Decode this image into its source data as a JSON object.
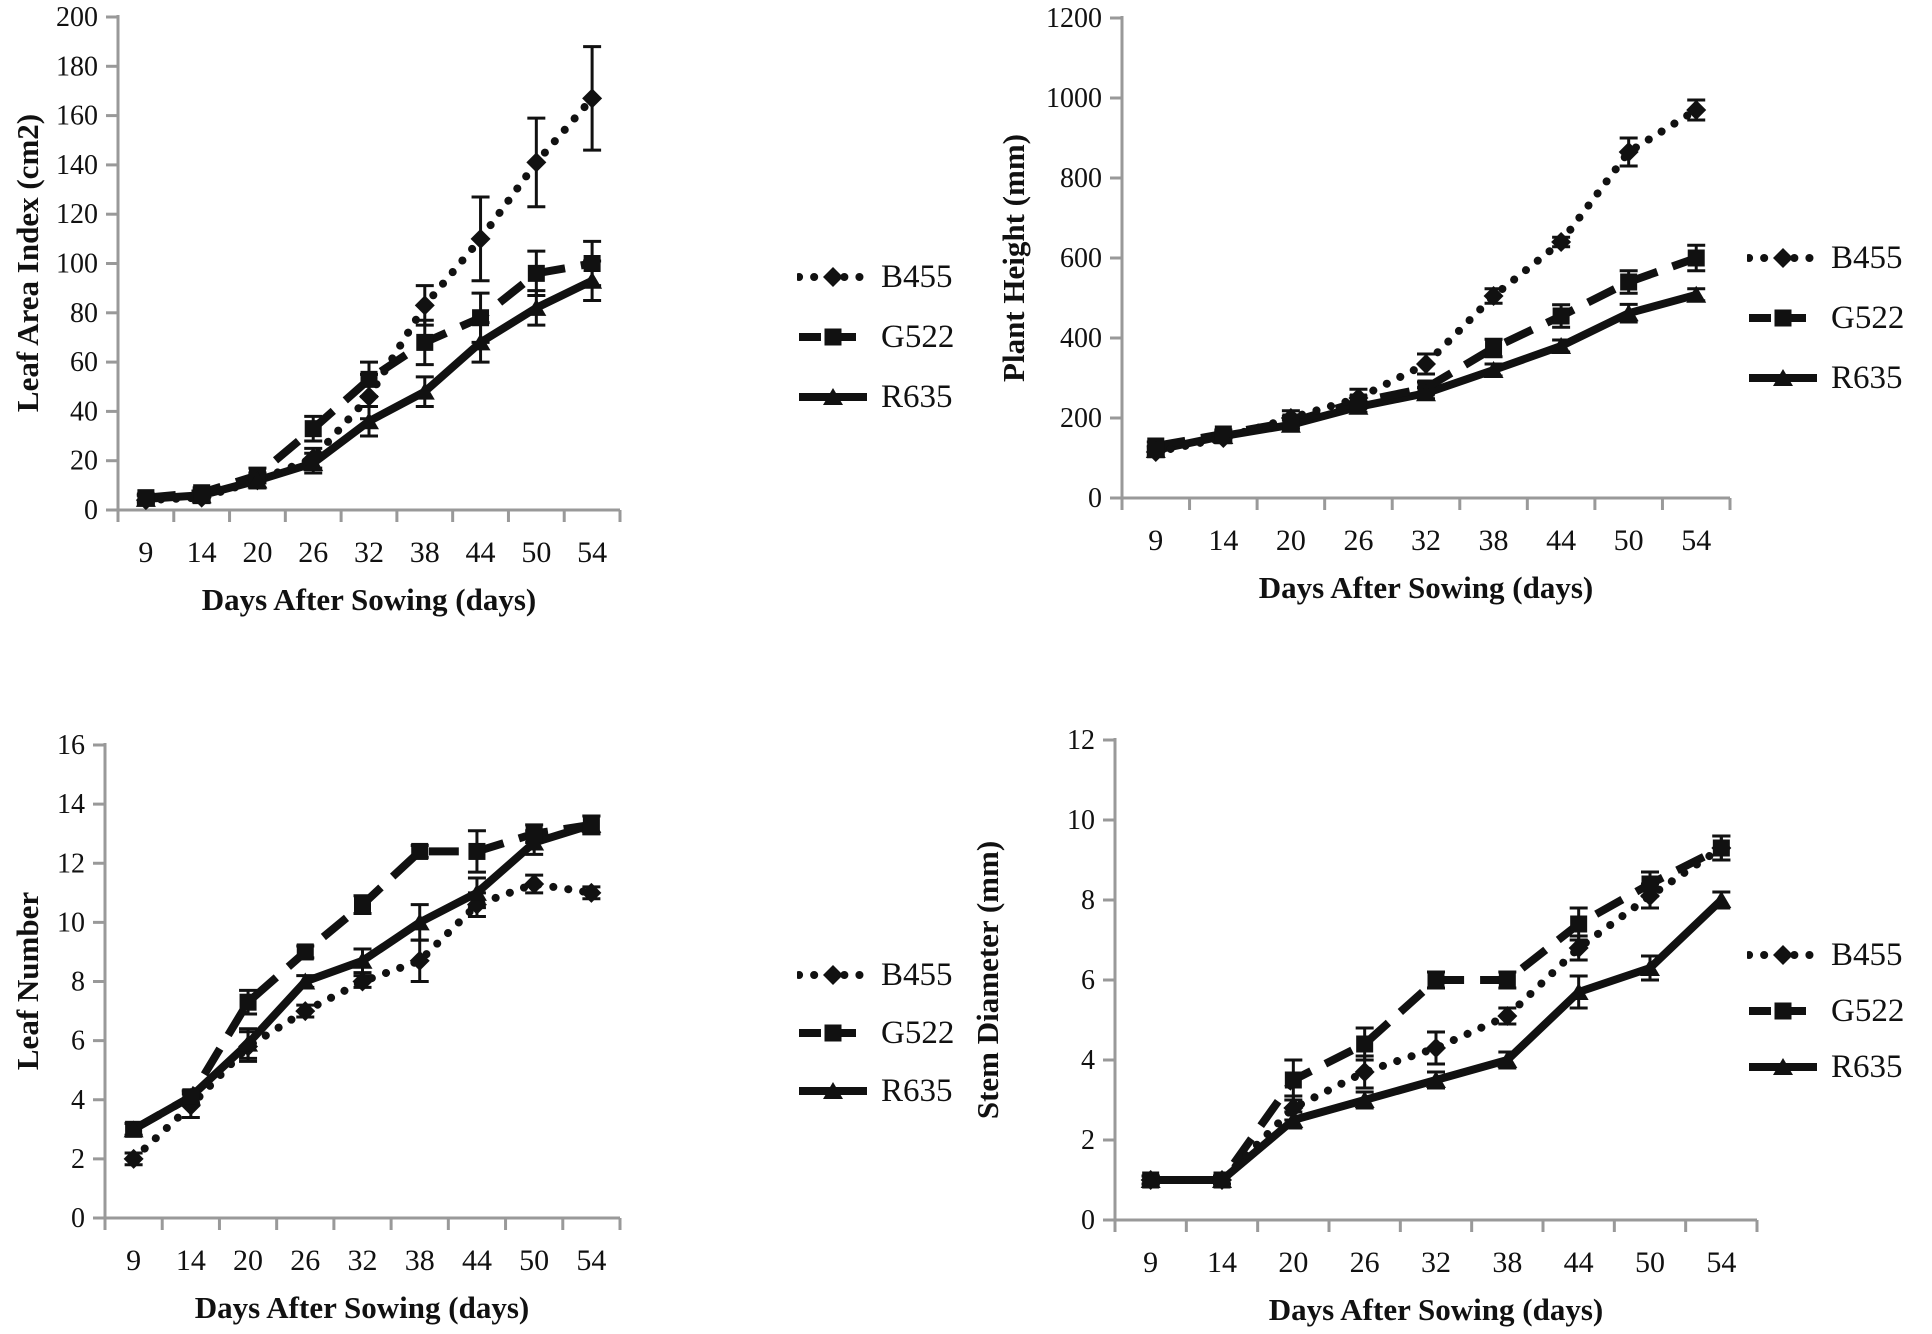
{
  "figure": {
    "background": "#ffffff",
    "ink_color": "#111111",
    "axis_color": "#999999",
    "x_axis_title": "Days After Sowing (days)"
  },
  "legend": {
    "position": "right",
    "items": [
      {
        "label": "B455",
        "style": "dotted",
        "marker": "diamond"
      },
      {
        "label": "G522",
        "style": "dashed",
        "marker": "square"
      },
      {
        "label": "R635",
        "style": "solid",
        "marker": "triangle"
      }
    ]
  },
  "chart_data": [
    {
      "type": "line",
      "id": "leaf-area-index",
      "ylabel": "Leaf Area Index (cm2)",
      "xlabel": "Days After Sowing (days)",
      "ylim": [
        0,
        200
      ],
      "ystep": 20,
      "grid": false,
      "categories": [
        "9",
        "14",
        "20",
        "26",
        "32",
        "38",
        "44",
        "50",
        "54"
      ],
      "series": [
        {
          "name": "B455",
          "style": "dotted",
          "marker": "diamond",
          "values": [
            4,
            5,
            12,
            21,
            46,
            83,
            110,
            141,
            167
          ],
          "errors": [
            2,
            2,
            3,
            4,
            9,
            8,
            17,
            18,
            21
          ]
        },
        {
          "name": "G522",
          "style": "dashed",
          "marker": "square",
          "values": [
            5,
            7,
            14,
            33,
            53,
            68,
            78,
            96,
            100
          ],
          "errors": [
            1.5,
            2,
            3,
            5,
            7,
            9,
            10,
            9,
            9
          ]
        },
        {
          "name": "R635",
          "style": "solid",
          "marker": "triangle",
          "values": [
            4.5,
            6,
            12,
            19,
            36,
            48,
            68,
            82,
            93
          ],
          "errors": [
            1.5,
            2,
            3,
            4,
            6,
            6,
            8,
            7,
            8
          ]
        }
      ]
    },
    {
      "type": "line",
      "id": "plant-height",
      "ylabel": "Plant Height (mm)",
      "xlabel": "Days After Sowing (days)",
      "ylim": [
        0,
        1200
      ],
      "ystep": 200,
      "grid": false,
      "categories": [
        "9",
        "14",
        "20",
        "26",
        "32",
        "38",
        "44",
        "50",
        "54"
      ],
      "series": [
        {
          "name": "B455",
          "style": "dotted",
          "marker": "diamond",
          "values": [
            115,
            150,
            200,
            250,
            335,
            505,
            640,
            865,
            970
          ],
          "errors": [
            12,
            12,
            18,
            22,
            25,
            18,
            12,
            35,
            25
          ]
        },
        {
          "name": "G522",
          "style": "dashed",
          "marker": "square",
          "values": [
            130,
            160,
            190,
            240,
            275,
            375,
            455,
            540,
            600
          ],
          "errors": [
            10,
            10,
            14,
            15,
            15,
            22,
            28,
            28,
            32
          ]
        },
        {
          "name": "R635",
          "style": "solid",
          "marker": "triangle",
          "values": [
            120,
            155,
            183,
            228,
            262,
            320,
            380,
            462,
            508
          ],
          "errors": [
            10,
            10,
            12,
            14,
            14,
            15,
            15,
            22,
            15
          ]
        }
      ]
    },
    {
      "type": "line",
      "id": "leaf-number",
      "ylabel": "Leaf Number",
      "xlabel": "Days After Sowing (days)",
      "ylim": [
        0,
        16
      ],
      "ystep": 2,
      "grid": false,
      "categories": [
        "9",
        "14",
        "20",
        "26",
        "32",
        "38",
        "44",
        "50",
        "54"
      ],
      "series": [
        {
          "name": "B455",
          "style": "dotted",
          "marker": "diamond",
          "values": [
            2.0,
            3.8,
            5.8,
            7.0,
            8.0,
            8.7,
            10.6,
            11.3,
            11.0
          ],
          "errors": [
            0.2,
            0.4,
            0.5,
            0.2,
            0.2,
            0.7,
            0.4,
            0.3,
            0.2
          ]
        },
        {
          "name": "G522",
          "style": "dashed",
          "marker": "square",
          "values": [
            3.0,
            4.1,
            7.3,
            9.0,
            10.6,
            12.4,
            12.4,
            13.0,
            13.3
          ],
          "errors": [
            0.2,
            0.2,
            0.4,
            0.2,
            0.3,
            0.2,
            0.7,
            0.3,
            0.3
          ]
        },
        {
          "name": "R635",
          "style": "solid",
          "marker": "triangle",
          "values": [
            3.0,
            4.1,
            5.9,
            8.0,
            8.7,
            10.0,
            11.0,
            12.7,
            13.3
          ],
          "errors": [
            0.2,
            0.2,
            0.5,
            0.2,
            0.4,
            0.6,
            0.5,
            0.4,
            0.3
          ]
        }
      ]
    },
    {
      "type": "line",
      "id": "stem-diameter",
      "ylabel": "Stem Diameter (mm)",
      "xlabel": "Days After Sowing (days)",
      "ylim": [
        0,
        12
      ],
      "ystep": 2,
      "grid": false,
      "categories": [
        "9",
        "14",
        "20",
        "26",
        "32",
        "38",
        "44",
        "50",
        "54"
      ],
      "series": [
        {
          "name": "B455",
          "style": "dotted",
          "marker": "diamond",
          "values": [
            1.0,
            1.0,
            2.8,
            3.7,
            4.3,
            5.1,
            6.8,
            8.1,
            9.3
          ],
          "errors": [
            0.1,
            0.1,
            0.3,
            0.4,
            0.4,
            0.2,
            0.3,
            0.3,
            0.3
          ]
        },
        {
          "name": "G522",
          "style": "dashed",
          "marker": "square",
          "values": [
            1.0,
            1.0,
            3.5,
            4.4,
            6.0,
            6.0,
            7.4,
            8.4,
            9.3
          ],
          "errors": [
            0.1,
            0.1,
            0.5,
            0.4,
            0.2,
            0.2,
            0.4,
            0.3,
            0.3
          ]
        },
        {
          "name": "R635",
          "style": "solid",
          "marker": "triangle",
          "values": [
            1.0,
            1.0,
            2.5,
            3.0,
            3.5,
            4.0,
            5.7,
            6.3,
            8.0
          ],
          "errors": [
            0.1,
            0.1,
            0.2,
            0.2,
            0.2,
            0.2,
            0.4,
            0.3,
            0.2
          ]
        }
      ]
    }
  ]
}
